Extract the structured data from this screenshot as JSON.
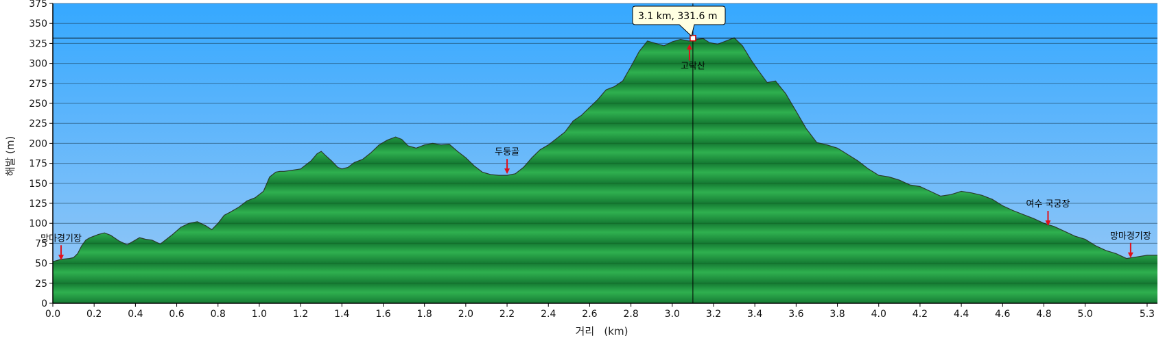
{
  "chart_data": {
    "type": "area",
    "xlabel": "거리   (km)",
    "ylabel": "해발 (m)",
    "xlim": [
      0,
      5.35
    ],
    "ylim": [
      0,
      375
    ],
    "x_ticks": [
      0.0,
      0.2,
      0.4,
      0.6,
      0.8,
      1.0,
      1.2,
      1.4,
      1.6,
      1.8,
      2.0,
      2.2,
      2.4,
      2.6,
      2.8,
      3.0,
      3.2,
      3.4,
      3.6,
      3.8,
      4.0,
      4.2,
      4.4,
      4.6,
      4.8,
      5.0,
      5.3
    ],
    "y_ticks": [
      0,
      25,
      50,
      75,
      100,
      125,
      150,
      175,
      200,
      225,
      250,
      275,
      300,
      325,
      350,
      375
    ],
    "grid": "horizontal",
    "profile": {
      "x": [
        0.0,
        0.04,
        0.08,
        0.1,
        0.12,
        0.14,
        0.16,
        0.18,
        0.22,
        0.25,
        0.28,
        0.32,
        0.36,
        0.38,
        0.42,
        0.45,
        0.48,
        0.52,
        0.55,
        0.58,
        0.62,
        0.66,
        0.7,
        0.74,
        0.77,
        0.8,
        0.83,
        0.86,
        0.9,
        0.94,
        0.98,
        1.02,
        1.05,
        1.08,
        1.1,
        1.12,
        1.15,
        1.2,
        1.25,
        1.28,
        1.3,
        1.32,
        1.35,
        1.38,
        1.4,
        1.43,
        1.46,
        1.5,
        1.54,
        1.58,
        1.62,
        1.66,
        1.69,
        1.72,
        1.76,
        1.8,
        1.84,
        1.88,
        1.92,
        1.96,
        2.0,
        2.04,
        2.08,
        2.12,
        2.16,
        2.2,
        2.24,
        2.28,
        2.32,
        2.36,
        2.4,
        2.44,
        2.48,
        2.52,
        2.56,
        2.6,
        2.64,
        2.68,
        2.72,
        2.76,
        2.8,
        2.84,
        2.88,
        2.92,
        2.96,
        3.0,
        3.04,
        3.08,
        3.1,
        3.12,
        3.15,
        3.18,
        3.22,
        3.26,
        3.3,
        3.34,
        3.38,
        3.42,
        3.46,
        3.5,
        3.55,
        3.6,
        3.65,
        3.7,
        3.75,
        3.8,
        3.85,
        3.9,
        3.95,
        4.0,
        4.05,
        4.1,
        4.15,
        4.2,
        4.25,
        4.3,
        4.35,
        4.4,
        4.45,
        4.5,
        4.55,
        4.6,
        4.65,
        4.7,
        4.75,
        4.8,
        4.85,
        4.9,
        4.95,
        5.0,
        5.05,
        5.1,
        5.15,
        5.2,
        5.25,
        5.3,
        5.35
      ],
      "y": [
        52,
        55,
        56,
        57,
        62,
        72,
        79,
        82,
        86,
        88,
        85,
        78,
        73,
        76,
        82,
        80,
        79,
        74,
        80,
        86,
        95,
        100,
        102,
        97,
        92,
        100,
        110,
        114,
        120,
        128,
        132,
        140,
        158,
        164,
        165,
        165,
        166,
        168,
        178,
        187,
        190,
        185,
        178,
        170,
        168,
        170,
        176,
        180,
        188,
        198,
        204,
        208,
        205,
        197,
        194,
        198,
        200,
        198,
        199,
        190,
        182,
        172,
        164,
        161,
        160,
        160,
        162,
        170,
        182,
        192,
        198,
        206,
        214,
        228,
        235,
        245,
        255,
        267,
        271,
        278,
        296,
        315,
        328,
        325,
        322,
        327,
        330,
        328,
        328,
        330,
        331,
        326,
        324,
        328,
        332,
        322,
        305,
        290,
        276,
        278,
        262,
        240,
        218,
        201,
        198,
        194,
        186,
        178,
        168,
        160,
        158,
        154,
        148,
        146,
        140,
        134,
        136,
        140,
        138,
        135,
        130,
        122,
        116,
        111,
        106,
        100,
        96,
        90,
        84,
        80,
        72,
        66,
        62,
        56,
        58,
        60,
        60
      ]
    },
    "markers": [
      {
        "name": "망마경기장",
        "x": 0.04,
        "y": 52
      },
      {
        "name": "두둥골",
        "x": 2.2,
        "y": 160
      },
      {
        "name": "고락산",
        "x": 3.1,
        "y": 331
      },
      {
        "name": "여수 국궁장",
        "x": 4.82,
        "y": 95
      },
      {
        "name": "망마경기장",
        "x": 5.22,
        "y": 55
      }
    ],
    "cursor": {
      "x": 3.1,
      "y": 331.6,
      "label": "3.1 km, 331.6 m"
    },
    "colors": {
      "sky_top": "#35a8ff",
      "sky_bottom": "#9ccaf6",
      "fill_dark": "#157a33",
      "fill_light": "#2fb04f",
      "outline": "#2b3b2b",
      "marker_arrow": "#e0101a",
      "tooltip_bg": "#ffffe1"
    }
  }
}
